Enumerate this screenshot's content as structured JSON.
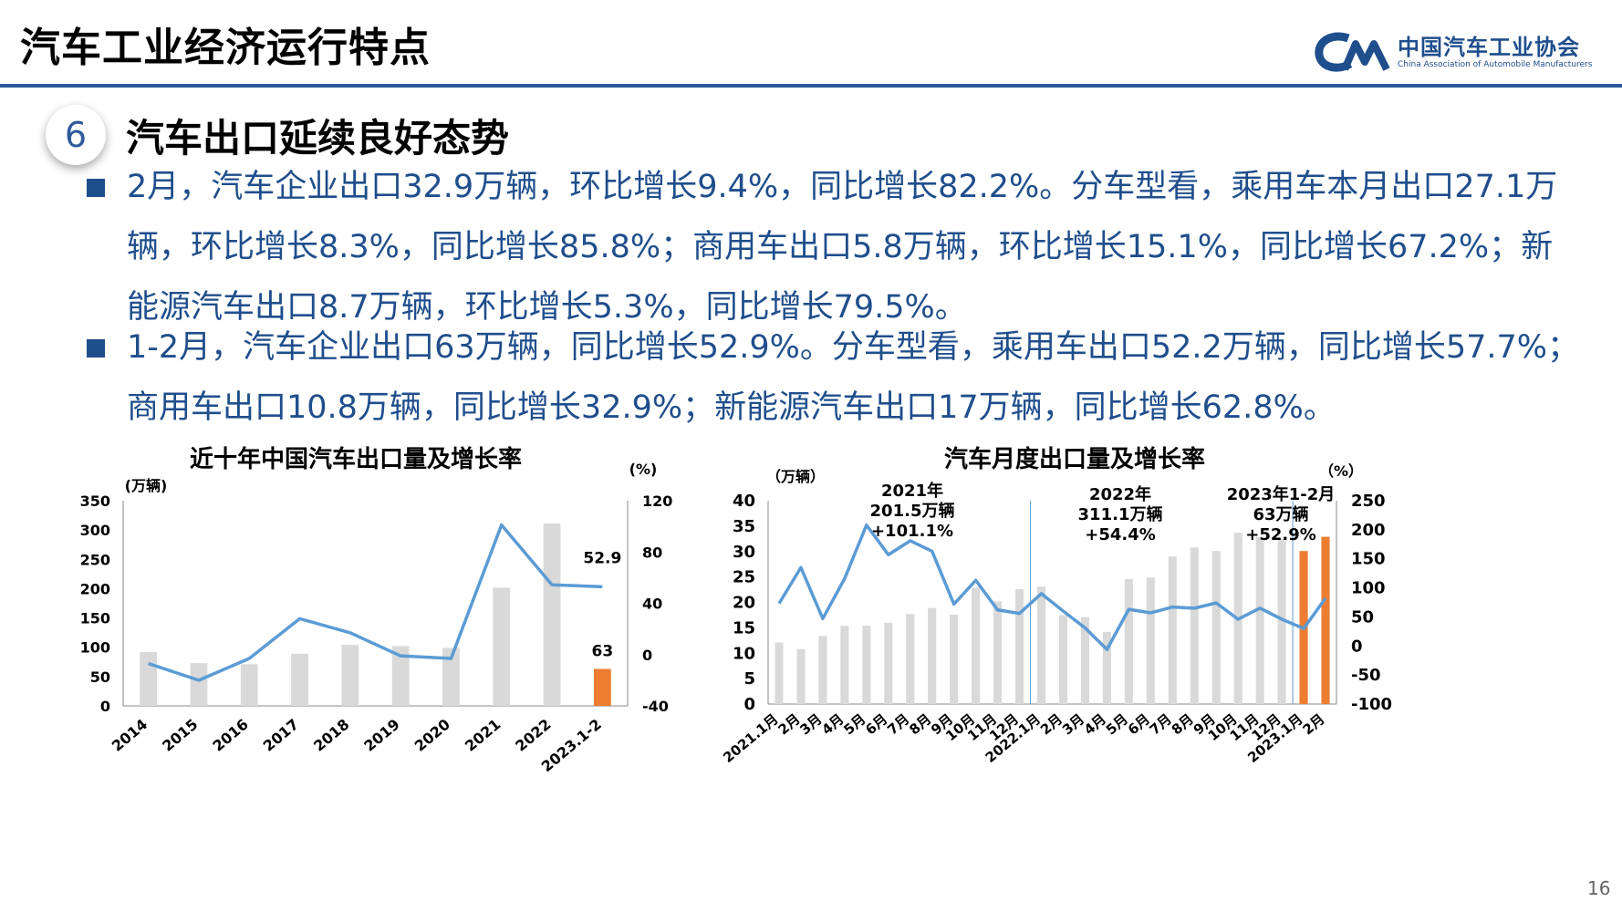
{
  "header": {
    "title": "汽车工业经济运行特点"
  },
  "logo": {
    "name_cn": "中国汽车工业协会",
    "name_en": "China Association of Automobile Manufacturers"
  },
  "section": {
    "number": "6",
    "title": "汽车出口延续良好态势"
  },
  "paragraphs": [
    "2月，汽车企业出口32.9万辆，环比增长9.4%，同比增长82.2%。分车型看，乘用车本月出口27.1万辆，环比增长8.3%，同比增长85.8%；商用车出口5.8万辆，环比增长15.1%，同比增长67.2%；新能源汽车出口8.7万辆，环比增长5.3%，同比增长79.5%。",
    "1-2月，汽车企业出口63万辆，同比增长52.9%。分车型看，乘用车出口52.2万辆，同比增长57.7%；商用车出口10.8万辆，同比增长32.9%；新能源汽车出口17万辆，同比增长62.8%。"
  ],
  "page_number": "16",
  "colors": {
    "bar": "#d9d9d9",
    "highlight": "#ed7d31",
    "line": "#5b9bd5",
    "text_blue": "#1f4e8c"
  },
  "chart_data": [
    {
      "type": "bar",
      "title": "近十年中国汽车出口量及增长率",
      "y_left_unit": "(万辆)",
      "y_right_unit": "(%)",
      "categories": [
        "2014",
        "2015",
        "2016",
        "2017",
        "2018",
        "2019",
        "2020",
        "2021",
        "2022",
        "2023.1-2"
      ],
      "series": [
        {
          "values": [
            92,
            73,
            71,
            89,
            104,
            102,
            99,
            201.5,
            311.1,
            63
          ]
        },
        {
          "values": [
            -7,
            -20,
            -3,
            28,
            17,
            -1,
            -3,
            101.1,
            54.4,
            52.9
          ]
        }
      ],
      "highlight_index": 9,
      "data_labels": [
        {
          "series": 0,
          "index": 9,
          "text": "63"
        },
        {
          "series": 1,
          "index": 9,
          "text": "52.9"
        }
      ],
      "ylim_left": [
        0,
        350
      ],
      "ylim_right": [
        -40,
        120
      ],
      "yticks_left": [
        "0",
        "50",
        "100",
        "150",
        "200",
        "250",
        "300",
        "350"
      ],
      "yticks_right": [
        "-40",
        "0",
        "40",
        "80",
        "120"
      ]
    },
    {
      "type": "bar",
      "title": "汽车月度出口量及增长率",
      "y_left_unit": "（万辆）",
      "y_right_unit": "（%）",
      "categories": [
        "2021.1月",
        "2月",
        "3月",
        "4月",
        "5月",
        "6月",
        "7月",
        "8月",
        "9月",
        "10月",
        "11月",
        "12月",
        "2022.1月",
        "2月",
        "3月",
        "4月",
        "5月",
        "6月",
        "7月",
        "8月",
        "9月",
        "10月",
        "11月",
        "12月",
        "2023.1月",
        "2月"
      ],
      "series": [
        {
          "values": [
            12.1,
            10.8,
            13.4,
            15.4,
            15.4,
            16,
            17.7,
            18.9,
            17.6,
            22.9,
            20.2,
            22.6,
            23.1,
            17.5,
            17.1,
            14.2,
            24.6,
            24.9,
            29,
            30.8,
            30.1,
            33.7,
            32.8,
            32.5,
            30.1,
            32.9
          ]
        },
        {
          "values": [
            73,
            135,
            47,
            116,
            208,
            157,
            181,
            163,
            72,
            113,
            62,
            56,
            90,
            60,
            31,
            -6,
            63,
            57,
            67,
            65,
            74,
            46,
            65,
            46,
            30,
            82.2
          ]
        }
      ],
      "highlight_indices": [
        24,
        25
      ],
      "annotations": [
        {
          "line1": "2021年",
          "line2": "201.5万辆",
          "line3": "+101.1%"
        },
        {
          "line1": "2022年",
          "line2": "311.1万辆",
          "line3": "+54.4%"
        },
        {
          "line1": "2023年1-2月",
          "line2": "63万辆",
          "line3": "+52.9%"
        }
      ],
      "ylim_left": [
        0,
        40
      ],
      "ylim_right": [
        -100,
        250
      ],
      "yticks_left": [
        "0",
        "5",
        "10",
        "15",
        "20",
        "25",
        "30",
        "35",
        "40"
      ],
      "yticks_right": [
        "-100",
        "-50",
        "0",
        "50",
        "100",
        "150",
        "200",
        "250"
      ]
    }
  ]
}
